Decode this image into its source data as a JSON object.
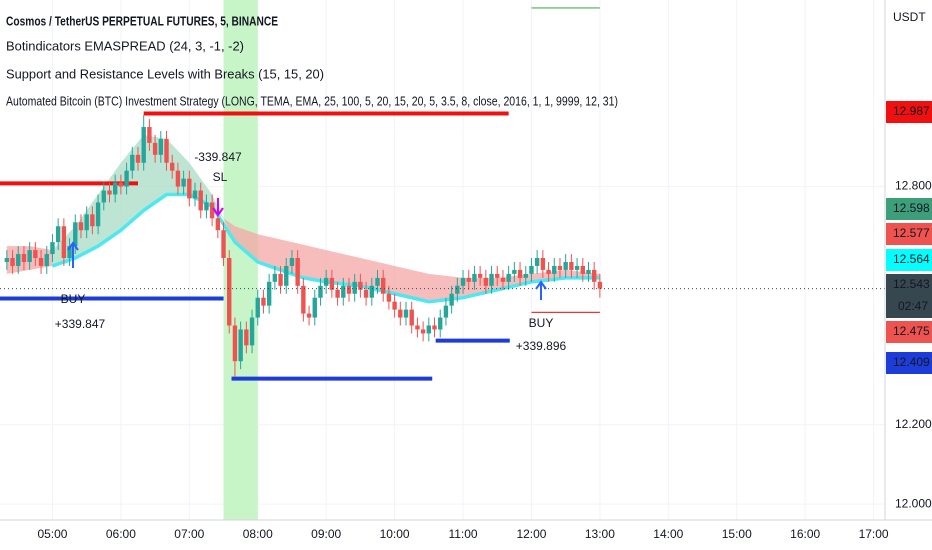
{
  "header": {
    "symbol": "Cosmos / TetherUS PERPETUAL FUTURES, 5, BINANCE",
    "indicators": [
      "Botindicators EMASPREAD (24, 3, -1, -2)",
      " Support and Resistance Levels with Breaks (15, 15, 20)",
      "Automated Bitcoin (BTC) Investment Strategy (LONG, TEMA, EMA, 25, 100, 5, 20, 15, 20, 5, 3.5, 8, close, 2016, 1, 1, 9999, 12, 31)"
    ]
  },
  "chart_data": {
    "type": "candlestick",
    "unit": "USDT",
    "up_color": "#26a69a",
    "down_color": "#ef5350",
    "x": [
      "04:20",
      "04:25",
      "04:30",
      "04:35",
      "04:40",
      "04:45",
      "04:50",
      "04:55",
      "05:00",
      "05:05",
      "05:10",
      "05:15",
      "05:20",
      "05:25",
      "05:30",
      "05:35",
      "05:40",
      "05:45",
      "05:50",
      "05:55",
      "06:00",
      "06:05",
      "06:10",
      "06:15",
      "06:20",
      "06:25",
      "06:30",
      "06:35",
      "06:40",
      "06:45",
      "06:50",
      "06:55",
      "07:00",
      "07:05",
      "07:10",
      "07:15",
      "07:20",
      "07:25",
      "07:30",
      "07:35",
      "07:40",
      "07:45",
      "07:50",
      "07:55",
      "08:00",
      "08:05",
      "08:10",
      "08:15",
      "08:20",
      "08:25",
      "08:30",
      "08:35",
      "08:40",
      "08:45",
      "08:50",
      "08:55",
      "09:00",
      "09:05",
      "09:10",
      "09:15",
      "09:20",
      "09:25",
      "09:30",
      "09:35",
      "09:40",
      "09:45",
      "09:50",
      "09:55",
      "10:00",
      "10:05",
      "10:10",
      "10:15",
      "10:20",
      "10:25",
      "10:30",
      "10:35",
      "10:40",
      "10:45",
      "10:50",
      "10:55",
      "11:00",
      "11:05",
      "11:10",
      "11:15",
      "11:20",
      "11:25",
      "11:30",
      "11:35",
      "11:40",
      "11:45",
      "11:50",
      "11:55",
      "12:00",
      "12:05",
      "12:10",
      "12:15",
      "12:20",
      "12:25",
      "12:30",
      "12:35",
      "12:40",
      "12:45",
      "12:50",
      "12:55",
      "13:00"
    ],
    "open": [
      12.61,
      12.62,
      12.6,
      12.63,
      12.61,
      12.64,
      12.62,
      12.6,
      12.63,
      12.66,
      12.7,
      12.62,
      12.65,
      12.71,
      12.69,
      12.73,
      12.7,
      12.76,
      12.79,
      12.78,
      12.81,
      12.8,
      12.84,
      12.88,
      12.86,
      12.95,
      12.91,
      12.88,
      12.92,
      12.86,
      12.84,
      12.8,
      12.82,
      12.77,
      12.79,
      12.74,
      12.76,
      12.72,
      12.69,
      12.62,
      12.45,
      12.36,
      12.44,
      12.4,
      12.47,
      12.52,
      12.5,
      12.56,
      12.58,
      12.55,
      12.6,
      12.62,
      12.55,
      12.48,
      12.47,
      12.52,
      12.55,
      12.57,
      12.54,
      12.52,
      12.55,
      12.53,
      12.56,
      12.54,
      12.52,
      12.55,
      12.57,
      12.53,
      12.51,
      12.49,
      12.47,
      12.49,
      12.45,
      12.44,
      12.43,
      12.45,
      12.44,
      12.47,
      12.5,
      12.53,
      12.55,
      12.57,
      12.56,
      12.58,
      12.57,
      12.55,
      12.58,
      12.57,
      12.56,
      12.58,
      12.59,
      12.57,
      12.58,
      12.6,
      12.62,
      12.59,
      12.58,
      12.6,
      12.59,
      12.61,
      12.59,
      12.6,
      12.58,
      12.59,
      12.56
    ],
    "high": [
      12.64,
      12.64,
      12.65,
      12.65,
      12.66,
      12.66,
      12.64,
      12.65,
      12.68,
      12.72,
      12.72,
      12.67,
      12.73,
      12.73,
      12.75,
      12.75,
      12.78,
      12.81,
      12.81,
      12.83,
      12.83,
      12.86,
      12.9,
      12.9,
      12.98,
      12.97,
      12.93,
      12.94,
      12.94,
      12.88,
      12.86,
      12.84,
      12.84,
      12.81,
      12.81,
      12.78,
      12.78,
      12.74,
      12.71,
      12.64,
      12.47,
      12.46,
      12.46,
      12.49,
      12.54,
      12.54,
      12.58,
      12.6,
      12.6,
      12.62,
      12.64,
      12.64,
      12.57,
      12.5,
      12.54,
      12.57,
      12.59,
      12.59,
      12.56,
      12.57,
      12.57,
      12.58,
      12.58,
      12.56,
      12.57,
      12.59,
      12.59,
      12.55,
      12.53,
      12.51,
      12.51,
      12.51,
      12.47,
      12.46,
      12.47,
      12.47,
      12.49,
      12.52,
      12.55,
      12.57,
      12.59,
      12.59,
      12.6,
      12.6,
      12.59,
      12.6,
      12.6,
      12.59,
      12.6,
      12.61,
      12.61,
      12.6,
      12.62,
      12.64,
      12.64,
      12.61,
      12.62,
      12.62,
      12.63,
      12.63,
      12.62,
      12.62,
      12.61,
      12.61,
      12.58
    ],
    "low": [
      12.59,
      12.58,
      12.58,
      12.59,
      12.59,
      12.6,
      12.58,
      12.58,
      12.61,
      12.64,
      12.6,
      12.6,
      12.63,
      12.67,
      12.67,
      12.68,
      12.68,
      12.74,
      12.76,
      12.76,
      12.78,
      12.78,
      12.82,
      12.84,
      12.84,
      12.89,
      12.86,
      12.86,
      12.84,
      12.82,
      12.78,
      12.78,
      12.75,
      12.75,
      12.72,
      12.72,
      12.7,
      12.67,
      12.6,
      12.43,
      12.32,
      12.34,
      12.38,
      12.38,
      12.45,
      12.48,
      12.48,
      12.54,
      12.53,
      12.53,
      12.58,
      12.53,
      12.46,
      12.45,
      12.45,
      12.5,
      12.53,
      12.52,
      12.5,
      12.5,
      12.51,
      12.51,
      12.52,
      12.5,
      12.5,
      12.53,
      12.51,
      12.49,
      12.47,
      12.45,
      12.45,
      12.43,
      12.42,
      12.41,
      12.41,
      12.42,
      12.42,
      12.45,
      12.48,
      12.51,
      12.53,
      12.54,
      12.54,
      12.55,
      12.53,
      12.53,
      12.55,
      12.54,
      12.54,
      12.56,
      12.55,
      12.55,
      12.56,
      12.58,
      12.57,
      12.56,
      12.56,
      12.57,
      12.57,
      12.57,
      12.57,
      12.56,
      12.56,
      12.54,
      12.52
    ],
    "close": [
      12.62,
      12.6,
      12.63,
      12.61,
      12.64,
      12.62,
      12.6,
      12.63,
      12.66,
      12.7,
      12.62,
      12.65,
      12.71,
      12.69,
      12.73,
      12.7,
      12.76,
      12.79,
      12.78,
      12.81,
      12.8,
      12.84,
      12.88,
      12.86,
      12.95,
      12.91,
      12.88,
      12.92,
      12.86,
      12.84,
      12.8,
      12.82,
      12.77,
      12.79,
      12.74,
      12.76,
      12.72,
      12.69,
      12.62,
      12.45,
      12.36,
      12.44,
      12.4,
      12.47,
      12.52,
      12.5,
      12.56,
      12.58,
      12.55,
      12.6,
      12.62,
      12.55,
      12.48,
      12.47,
      12.52,
      12.55,
      12.57,
      12.54,
      12.52,
      12.55,
      12.53,
      12.56,
      12.54,
      12.52,
      12.55,
      12.57,
      12.53,
      12.51,
      12.49,
      12.47,
      12.49,
      12.45,
      12.44,
      12.43,
      12.45,
      12.44,
      12.47,
      12.5,
      12.53,
      12.55,
      12.57,
      12.56,
      12.58,
      12.57,
      12.55,
      12.58,
      12.57,
      12.56,
      12.58,
      12.59,
      12.57,
      12.58,
      12.6,
      12.62,
      12.59,
      12.58,
      12.6,
      12.59,
      12.61,
      12.59,
      12.6,
      12.58,
      12.59,
      12.56,
      12.543
    ],
    "xlim": [
      "04:14",
      "17:10"
    ],
    "xticks": [
      "05:00",
      "06:00",
      "07:00",
      "08:00",
      "09:00",
      "10:00",
      "11:00",
      "12:00",
      "13:00",
      "14:00",
      "15:00",
      "16:00",
      "17:00"
    ],
    "ylim": [
      11.96,
      13.27
    ],
    "yticks": [
      {
        "value": 12,
        "label": "12.000"
      },
      {
        "value": 12.2,
        "label": "12.200"
      },
      {
        "value": 12.8,
        "label": "12.800"
      }
    ],
    "grid": true,
    "session": {
      "from": "07:30",
      "to": "08:00",
      "color": "#c8f5c8"
    },
    "areas": [
      {
        "color": "#f4a6a6",
        "x": [
          "04:20",
          "04:40",
          "05:00"
        ],
        "upper": [
          12.65,
          12.65,
          12.64
        ],
        "lower": [
          12.58,
          12.59,
          12.6
        ]
      },
      {
        "color": "#a8dcc4",
        "x": [
          "05:00",
          "05:20",
          "05:40",
          "06:00",
          "06:20",
          "06:40",
          "07:00",
          "07:20",
          "07:30"
        ],
        "upper": [
          12.64,
          12.7,
          12.78,
          12.86,
          12.93,
          12.92,
          12.86,
          12.78,
          12.72
        ],
        "lower": [
          12.6,
          12.62,
          12.65,
          12.69,
          12.74,
          12.78,
          12.78,
          12.75,
          12.72
        ]
      },
      {
        "color": "#f4a6a6",
        "x": [
          "07:30",
          "07:40",
          "08:00",
          "08:30",
          "09:00",
          "09:30",
          "10:00",
          "10:30",
          "11:00",
          "11:30",
          "12:00",
          "12:30",
          "13:00"
        ],
        "upper": [
          12.72,
          12.7,
          12.68,
          12.66,
          12.64,
          12.62,
          12.6,
          12.58,
          12.57,
          12.57,
          12.58,
          12.59,
          12.58
        ],
        "lower": [
          12.72,
          12.66,
          12.61,
          12.58,
          12.56,
          12.55,
          12.53,
          12.51,
          12.52,
          12.54,
          12.56,
          12.57,
          12.57
        ]
      }
    ],
    "lines": [
      {
        "color": "#4de8f0",
        "x": [
          "05:00",
          "05:20",
          "05:40",
          "06:00",
          "06:20",
          "06:40",
          "07:00",
          "07:20",
          "07:40",
          "08:00",
          "08:20",
          "08:40",
          "09:00",
          "09:30",
          "10:00",
          "10:30",
          "11:00",
          "11:30",
          "12:00",
          "12:30",
          "13:00"
        ],
        "values": [
          12.6,
          12.62,
          12.65,
          12.69,
          12.74,
          12.78,
          12.78,
          12.75,
          12.66,
          12.61,
          12.59,
          12.57,
          12.56,
          12.55,
          12.53,
          12.51,
          12.52,
          12.54,
          12.56,
          12.57,
          12.57
        ]
      }
    ],
    "levels": [
      {
        "color": "#f01010",
        "style": "thick",
        "from": "04:14",
        "to": "06:15",
        "value": 12.808
      },
      {
        "color": "#f01010",
        "style": "thick",
        "from": "06:20",
        "to": "11:40",
        "value": 12.984
      },
      {
        "color": "#1e3cd8",
        "style": "thick",
        "from": "04:14",
        "to": "07:30",
        "value": 12.518
      },
      {
        "color": "#1e3cd8",
        "style": "thick",
        "from": "07:37",
        "to": "10:33",
        "value": 12.316
      },
      {
        "color": "#1e3cd8",
        "style": "thick",
        "from": "10:36",
        "to": "11:41",
        "value": 12.412
      },
      {
        "color": "#e53935",
        "style": "thin",
        "from": "12:00",
        "to": "13:00",
        "value": 12.483
      },
      {
        "color": "#4caf50",
        "style": "thin",
        "from": "12:00",
        "to": "13:00",
        "value": 13.25
      }
    ],
    "annotations": [
      "BUY",
      "+339.847",
      "-339.847",
      "SL",
      "BUY",
      "+339.896"
    ],
    "price_badges": [
      {
        "value": 12.987,
        "color": "#f01010",
        "text_color": "#ffffff"
      },
      {
        "value": 12.598,
        "color": "#3d9e7a",
        "text_color": "#ffffff"
      },
      {
        "value": 12.577,
        "color": "#ef5350",
        "text_color": "#ffffff"
      },
      {
        "value": 12.564,
        "color": "#00ffff",
        "text_color": "#131722"
      },
      {
        "value": 12.543,
        "color": "#37474f",
        "text_color": "#ffffff"
      },
      {
        "value": 12.475,
        "color": "#ef5350",
        "text_color": "#ffffff"
      },
      {
        "value": 12.409,
        "color": "#1e3cd8",
        "text_color": "#ffffff"
      }
    ],
    "countdown": "02:47"
  }
}
